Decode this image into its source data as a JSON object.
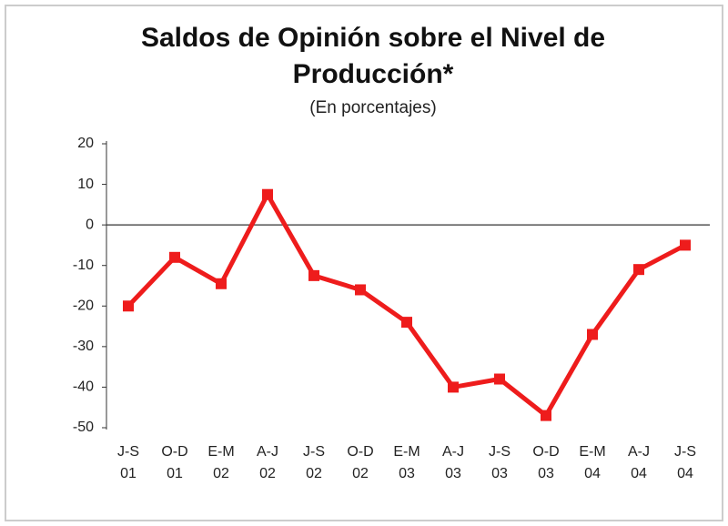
{
  "chart_data": {
    "type": "line",
    "title": "Saldos de Opinión sobre el Nivel de Producción*",
    "subtitle": "(En porcentajes)",
    "categories": [
      [
        "J-S",
        "01"
      ],
      [
        "O-D",
        "01"
      ],
      [
        "E-M",
        "02"
      ],
      [
        "A-J",
        "02"
      ],
      [
        "J-S",
        "02"
      ],
      [
        "O-D",
        "02"
      ],
      [
        "E-M",
        "03"
      ],
      [
        "A-J",
        "03"
      ],
      [
        "J-S",
        "03"
      ],
      [
        "O-D",
        "03"
      ],
      [
        "E-M",
        "04"
      ],
      [
        "A-J",
        "04"
      ],
      [
        "J-S",
        "04"
      ]
    ],
    "series": [
      {
        "color": "#ee1c1c",
        "values": [
          -20,
          -8,
          -14.5,
          7.5,
          -12.5,
          -16,
          -24,
          -40,
          -38,
          -47,
          -27,
          -11,
          -5
        ]
      }
    ],
    "ylim": [
      -50,
      20
    ],
    "yticks": [
      -50,
      -40,
      -30,
      -20,
      -10,
      0,
      10,
      20
    ],
    "grid": false
  }
}
